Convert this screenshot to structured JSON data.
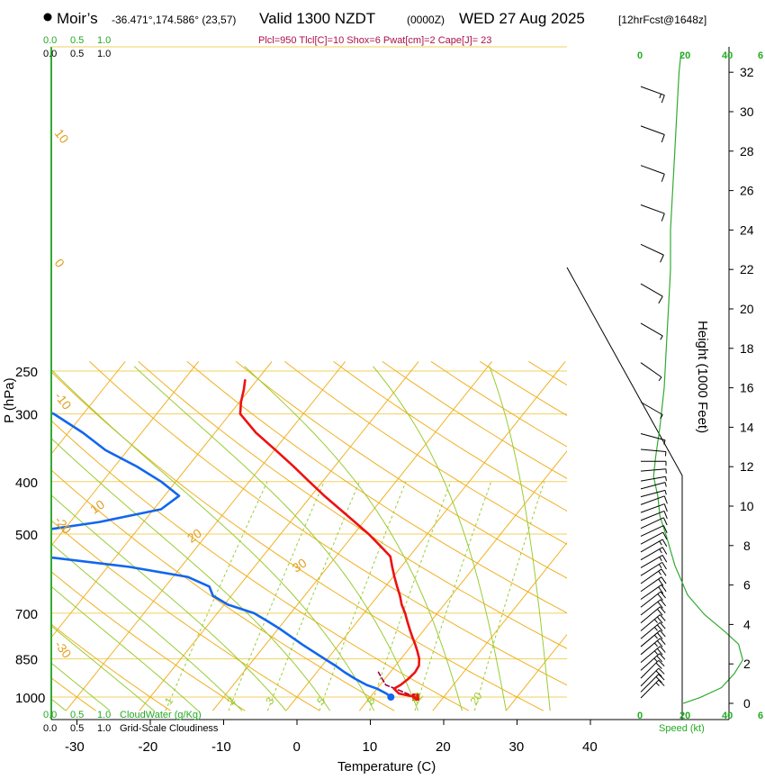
{
  "header": {
    "source": "Moir’s",
    "location": "-36.471°,174.586° (23,57)",
    "valid": "Valid 1300 NZDT",
    "run": "(0000Z)",
    "date": "WED 27 Aug 2025",
    "forecast": "[12hrFcst@1648z]",
    "params": "Plcl=950 Tlcl[C]=10 Shox=6 Pwat[cm]=2 Cape[J]= 23"
  },
  "colors": {
    "temperature": "#ee1111",
    "dewpoint": "#1166ee",
    "parcel": "#990044",
    "isotherm": "#f0b020",
    "dry_adiabat": "#f0b020",
    "moist_adiabat": "#99cc33",
    "mixing_ratio": "#99cc33",
    "isobar": "#f0d060",
    "speed": "#33aa33",
    "cloud_axis": "#22aa22"
  },
  "chart_data": {
    "type": "line",
    "title": "Skew-T log-P sounding",
    "xlabel": "Temperature (C)",
    "ylabel": "P (hPa)",
    "right_ylabel": "Height (1000 Feet)",
    "x_ticks": [
      "-30",
      "-20",
      "-10",
      "0",
      "10",
      "20",
      "30",
      "40"
    ],
    "p_ticks": [
      "250",
      "300",
      "400",
      "500",
      "700",
      "850",
      "1000"
    ],
    "p_tick_values": [
      250,
      300,
      400,
      500,
      700,
      850,
      1000
    ],
    "height_ticks": [
      "0",
      "2",
      "4",
      "6",
      "8",
      "10",
      "12",
      "14",
      "16",
      "18",
      "20",
      "22",
      "24",
      "26",
      "28",
      "30",
      "32"
    ],
    "speed_ticks": [
      "0",
      "20",
      "40",
      "6"
    ],
    "speed_label": "Speed (kt)",
    "cloud_ticks": [
      "0.0",
      "0.5",
      "1.0"
    ],
    "cloudwater_label": "CloudWater (g/Kg)",
    "cloudiness_label": "Grid-Scale Cloudiness",
    "isotherm_labels": [
      "10",
      "0",
      "-10",
      "-20",
      "-30"
    ],
    "theta_labels": [
      "0",
      "10",
      "20",
      "30"
    ],
    "mixing_labels": [
      "1",
      "2",
      "3",
      "5",
      "8",
      "12",
      "20"
    ],
    "temperature": [
      {
        "p": 1000,
        "t": 16.2
      },
      {
        "p": 985,
        "t": 13.5
      },
      {
        "p": 965,
        "t": 12.3
      },
      {
        "p": 950,
        "t": 12.8
      },
      {
        "p": 925,
        "t": 13.2
      },
      {
        "p": 900,
        "t": 13.4
      },
      {
        "p": 875,
        "t": 13.2
      },
      {
        "p": 850,
        "t": 12.5
      },
      {
        "p": 825,
        "t": 11.5
      },
      {
        "p": 800,
        "t": 10.4
      },
      {
        "p": 775,
        "t": 9.2
      },
      {
        "p": 750,
        "t": 8.0
      },
      {
        "p": 725,
        "t": 6.8
      },
      {
        "p": 700,
        "t": 5.6
      },
      {
        "p": 675,
        "t": 4.2
      },
      {
        "p": 650,
        "t": 3.0
      },
      {
        "p": 625,
        "t": 1.6
      },
      {
        "p": 600,
        "t": 0.2
      },
      {
        "p": 575,
        "t": -1.2
      },
      {
        "p": 550,
        "t": -2.6
      },
      {
        "p": 525,
        "t": -5.2
      },
      {
        "p": 500,
        "t": -8.0
      },
      {
        "p": 475,
        "t": -11.2
      },
      {
        "p": 450,
        "t": -14.6
      },
      {
        "p": 425,
        "t": -18.2
      },
      {
        "p": 400,
        "t": -21.8
      },
      {
        "p": 375,
        "t": -25.6
      },
      {
        "p": 350,
        "t": -29.8
      },
      {
        "p": 325,
        "t": -34.4
      },
      {
        "p": 300,
        "t": -38.6
      },
      {
        "p": 285,
        "t": -39.8
      },
      {
        "p": 270,
        "t": -40.8
      },
      {
        "p": 260,
        "t": -41.6
      }
    ],
    "dewpoint": [
      {
        "p": 1000,
        "t": 12.8
      },
      {
        "p": 985,
        "t": 11.8
      },
      {
        "p": 965,
        "t": 10.0
      },
      {
        "p": 950,
        "t": 8.2
      },
      {
        "p": 925,
        "t": 5.9
      },
      {
        "p": 900,
        "t": 3.8
      },
      {
        "p": 875,
        "t": 1.8
      },
      {
        "p": 850,
        "t": -0.4
      },
      {
        "p": 800,
        "t": -5.0
      },
      {
        "p": 750,
        "t": -9.6
      },
      {
        "p": 725,
        "t": -12.2
      },
      {
        "p": 700,
        "t": -15.0
      },
      {
        "p": 675,
        "t": -19.5
      },
      {
        "p": 650,
        "t": -22.5
      },
      {
        "p": 625,
        "t": -24.0
      },
      {
        "p": 600,
        "t": -28.0
      },
      {
        "p": 575,
        "t": -37.0
      },
      {
        "p": 550,
        "t": -50.0
      },
      {
        "p": 525,
        "t": -58.0
      },
      {
        "p": 500,
        "t": -56.0
      },
      {
        "p": 475,
        "t": -46.0
      },
      {
        "p": 450,
        "t": -39.0
      },
      {
        "p": 425,
        "t": -38.0
      },
      {
        "p": 400,
        "t": -42.0
      },
      {
        "p": 375,
        "t": -47.0
      },
      {
        "p": 350,
        "t": -53.0
      },
      {
        "p": 325,
        "t": -58.0
      },
      {
        "p": 300,
        "t": -64.0
      },
      {
        "p": 285,
        "t": -70.0
      },
      {
        "p": 270,
        "t": -71.0
      },
      {
        "p": 260,
        "t": -72.0
      }
    ],
    "parcel": [
      {
        "p": 1000,
        "t": 16.2
      },
      {
        "p": 985,
        "t": 14.6
      },
      {
        "p": 965,
        "t": 12.5
      },
      {
        "p": 950,
        "t": 10.8
      },
      {
        "p": 925,
        "t": 9.6
      },
      {
        "p": 900,
        "t": 8.4
      }
    ],
    "surface_t": 16.2,
    "surface_td": 12.8,
    "wind": [
      {
        "h": 0.0,
        "dir": 225,
        "kt": 18
      },
      {
        "h": 0.3,
        "dir": 225,
        "kt": 20
      },
      {
        "h": 0.6,
        "dir": 225,
        "kt": 22
      },
      {
        "h": 1.0,
        "dir": 225,
        "kt": 24
      },
      {
        "h": 1.4,
        "dir": 228,
        "kt": 25
      },
      {
        "h": 1.8,
        "dir": 230,
        "kt": 26
      },
      {
        "h": 2.2,
        "dir": 230,
        "kt": 27
      },
      {
        "h": 2.6,
        "dir": 230,
        "kt": 27
      },
      {
        "h": 3.0,
        "dir": 230,
        "kt": 26
      },
      {
        "h": 3.4,
        "dir": 230,
        "kt": 25
      },
      {
        "h": 3.8,
        "dir": 230,
        "kt": 24
      },
      {
        "h": 4.2,
        "dir": 232,
        "kt": 23
      },
      {
        "h": 4.6,
        "dir": 232,
        "kt": 22
      },
      {
        "h": 5.0,
        "dir": 235,
        "kt": 21
      },
      {
        "h": 5.4,
        "dir": 235,
        "kt": 20
      },
      {
        "h": 5.8,
        "dir": 235,
        "kt": 19
      },
      {
        "h": 6.2,
        "dir": 238,
        "kt": 18
      },
      {
        "h": 6.6,
        "dir": 240,
        "kt": 17
      },
      {
        "h": 7.0,
        "dir": 240,
        "kt": 16
      },
      {
        "h": 7.4,
        "dir": 240,
        "kt": 15
      },
      {
        "h": 7.8,
        "dir": 242,
        "kt": 14
      },
      {
        "h": 8.2,
        "dir": 245,
        "kt": 13
      },
      {
        "h": 8.6,
        "dir": 245,
        "kt": 12
      },
      {
        "h": 9.0,
        "dir": 248,
        "kt": 11
      },
      {
        "h": 9.4,
        "dir": 250,
        "kt": 10
      },
      {
        "h": 9.8,
        "dir": 250,
        "kt": 10
      },
      {
        "h": 10.2,
        "dir": 255,
        "kt": 9
      },
      {
        "h": 10.6,
        "dir": 255,
        "kt": 9
      },
      {
        "h": 11.0,
        "dir": 260,
        "kt": 8
      },
      {
        "h": 11.5,
        "dir": 265,
        "kt": 7
      },
      {
        "h": 12.0,
        "dir": 270,
        "kt": 6
      },
      {
        "h": 12.6,
        "dir": 275,
        "kt": 5
      },
      {
        "h": 13.4,
        "dir": 285,
        "kt": 5
      },
      {
        "h": 15.0,
        "dir": 300,
        "kt": 6
      },
      {
        "h": 17.0,
        "dir": 305,
        "kt": 7
      },
      {
        "h": 19.0,
        "dir": 300,
        "kt": 9
      },
      {
        "h": 21.0,
        "dir": 300,
        "kt": 10
      },
      {
        "h": 23.0,
        "dir": 295,
        "kt": 11
      },
      {
        "h": 25.0,
        "dir": 290,
        "kt": 12
      },
      {
        "h": 27.0,
        "dir": 290,
        "kt": 13
      },
      {
        "h": 29.0,
        "dir": 290,
        "kt": 14
      },
      {
        "h": 31.0,
        "dir": 290,
        "kt": 15
      }
    ],
    "speed_profile": [
      {
        "h": 0.0,
        "kt": 20
      },
      {
        "h": 0.3,
        "kt": 28
      },
      {
        "h": 0.8,
        "kt": 38
      },
      {
        "h": 1.5,
        "kt": 44
      },
      {
        "h": 2.2,
        "kt": 48
      },
      {
        "h": 3.0,
        "kt": 46
      },
      {
        "h": 3.6,
        "kt": 40
      },
      {
        "h": 4.5,
        "kt": 30
      },
      {
        "h": 5.5,
        "kt": 22
      },
      {
        "h": 7.0,
        "kt": 16
      },
      {
        "h": 8.5,
        "kt": 12
      },
      {
        "h": 9.5,
        "kt": 9
      },
      {
        "h": 10.5,
        "kt": 8
      },
      {
        "h": 11.5,
        "kt": 6
      },
      {
        "h": 12.5,
        "kt": 7
      },
      {
        "h": 14.0,
        "kt": 9
      },
      {
        "h": 16.0,
        "kt": 11
      },
      {
        "h": 18.0,
        "kt": 12
      },
      {
        "h": 20.0,
        "kt": 13
      },
      {
        "h": 22.0,
        "kt": 14
      },
      {
        "h": 24.0,
        "kt": 14
      },
      {
        "h": 26.0,
        "kt": 15
      },
      {
        "h": 28.0,
        "kt": 16
      },
      {
        "h": 30.0,
        "kt": 17
      },
      {
        "h": 32.0,
        "kt": 18
      },
      {
        "h": 33.0,
        "kt": 19
      }
    ],
    "cloudwater": [
      {
        "p": 1000,
        "v": 0
      },
      {
        "p": 250,
        "v": 0
      }
    ]
  }
}
